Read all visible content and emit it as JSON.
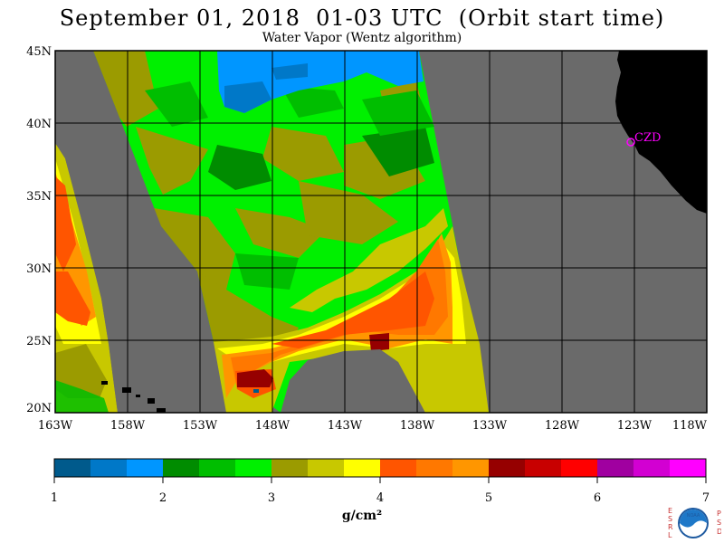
{
  "header": {
    "title": "September 01, 2018  01-03 UTC  (Orbit start time)",
    "subtitle": "Water Vapor (Wentz algorithm)"
  },
  "map": {
    "lat_labels": [
      "45N",
      "40N",
      "35N",
      "30N",
      "25N",
      "20N"
    ],
    "lon_labels": [
      "163W",
      "158W",
      "153W",
      "148W",
      "143W",
      "138W",
      "133W",
      "128W",
      "123W",
      "118W"
    ],
    "station_label": "CZD",
    "colors": {
      "no_data": "#6a6a6a",
      "land": "#000000",
      "station": "#ff00ff"
    }
  },
  "colorbar": {
    "tick_labels": [
      "1",
      "2",
      "3",
      "4",
      "5",
      "6",
      "7"
    ],
    "units": "g/cm²",
    "colors": [
      "#005a8c",
      "#0078c8",
      "#0096ff",
      "#008c00",
      "#00be00",
      "#00f000",
      "#9b9b00",
      "#c8c800",
      "#ffff00",
      "#ff5500",
      "#ff7800",
      "#ff9600",
      "#960000",
      "#c80000",
      "#ff0000",
      "#a000a0",
      "#d200d2",
      "#ff00ff"
    ]
  },
  "logos": {
    "left_letters": [
      "E",
      "S",
      "R",
      "L"
    ],
    "right_letters": [
      "P",
      "S",
      "D"
    ],
    "noaa": "NOAA"
  }
}
